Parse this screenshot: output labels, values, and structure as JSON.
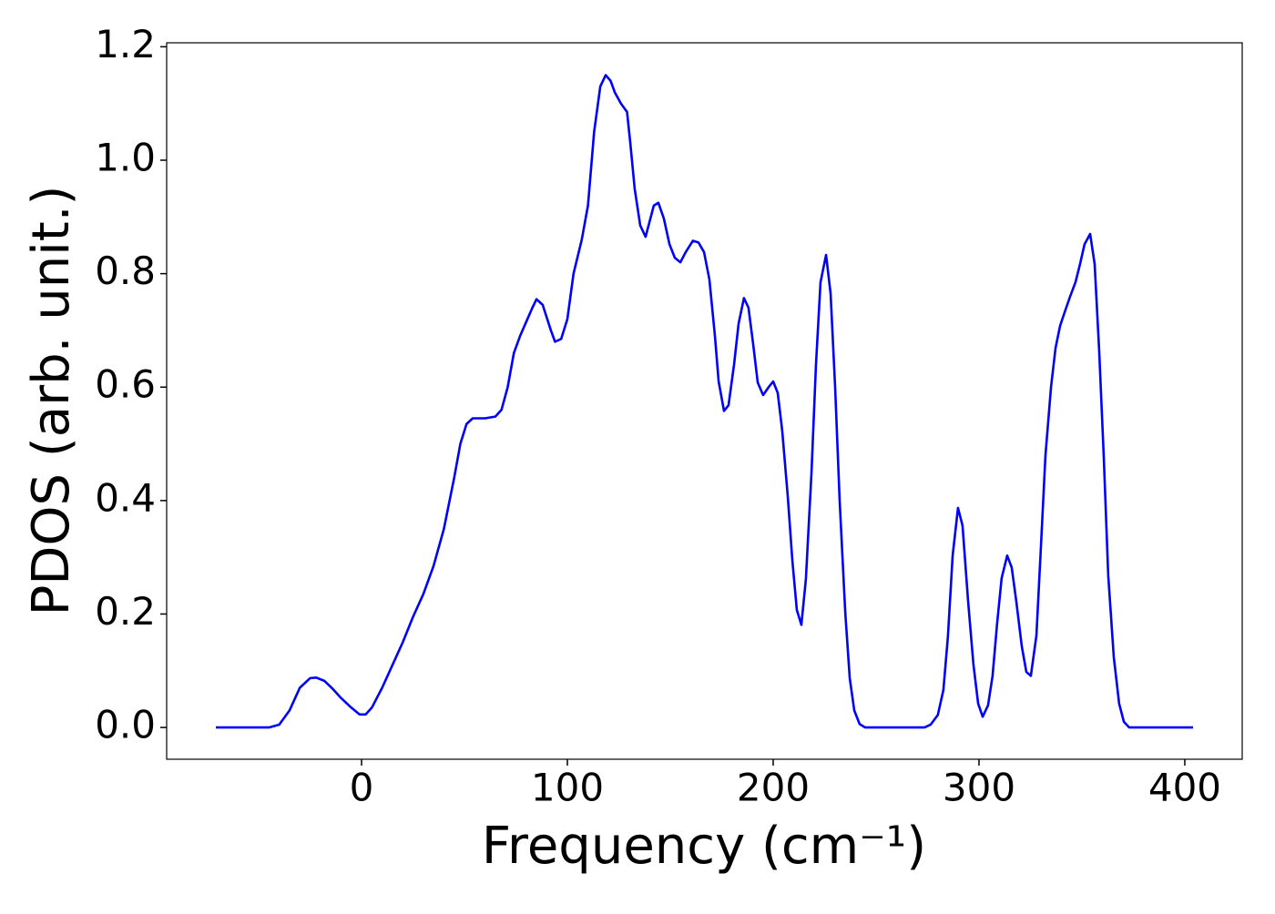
{
  "chart_data": {
    "type": "line",
    "xlabel": "Frequency (cm⁻¹)",
    "ylabel": "PDOS (arb. unit.)",
    "xlim": [
      -94.7,
      427.9
    ],
    "xticks": [
      0,
      100,
      200,
      300,
      400
    ],
    "ylim": [
      -0.056,
      1.207
    ],
    "yticks": [
      {
        "value": 0,
        "label": "0.0"
      },
      0.2,
      0.4,
      0.6,
      0.8,
      {
        "value": 1,
        "label": "1.0"
      },
      1.2
    ],
    "series": [
      {
        "color": "#0000ff",
        "x": [
          -70.8,
          -45,
          -40,
          -35,
          -30,
          -25,
          -22,
          -18,
          -14,
          -10,
          -5,
          -1,
          2,
          5,
          10,
          15,
          20,
          25,
          30,
          35,
          40,
          45,
          48,
          51,
          54,
          60,
          65,
          68,
          71,
          74,
          77,
          80,
          83,
          85,
          88,
          92,
          94,
          97,
          100,
          103,
          107,
          110,
          113,
          116,
          118.6,
          121,
          123,
          126,
          129,
          130.5,
          132.7,
          135.4,
          138,
          142,
          144.2,
          146.9,
          149.6,
          152.2,
          154.9,
          157.5,
          161,
          163.7,
          166.4,
          169,
          171.7,
          173.5,
          176.1,
          178.3,
          181,
          183.2,
          185.8,
          188,
          190.3,
          192.5,
          195.1,
          197.8,
          200,
          202.2,
          204.4,
          207.1,
          209.3,
          211.5,
          213.7,
          215.9,
          218.6,
          220.8,
          223,
          225.7,
          227.9,
          230.1,
          232.3,
          235,
          237.2,
          239.4,
          242,
          244.7,
          273.5,
          276.5,
          280,
          282.7,
          284.9,
          287.2,
          289.8,
          292,
          294.7,
          297.3,
          299.6,
          301.8,
          304.4,
          306.6,
          308.8,
          311,
          313.7,
          315.9,
          318.1,
          320.8,
          323,
          325.2,
          327.9,
          330.1,
          332.3,
          335,
          337.2,
          339.4,
          342,
          344.2,
          346.9,
          349.1,
          351.3,
          354,
          356.2,
          358.4,
          360.6,
          362.8,
          365.5,
          368.1,
          370.4,
          373,
          404
        ],
        "values": [
          0,
          0,
          0.005,
          0.03,
          0.07,
          0.087,
          0.088,
          0.082,
          0.068,
          0.052,
          0.035,
          0.023,
          0.023,
          0.035,
          0.07,
          0.11,
          0.15,
          0.195,
          0.235,
          0.285,
          0.35,
          0.44,
          0.5,
          0.535,
          0.545,
          0.545,
          0.548,
          0.56,
          0.6,
          0.66,
          0.69,
          0.715,
          0.74,
          0.755,
          0.745,
          0.7,
          0.68,
          0.685,
          0.72,
          0.8,
          0.86,
          0.92,
          1.05,
          1.13,
          1.15,
          1.14,
          1.12,
          1.1,
          1.085,
          1.033,
          0.95,
          0.885,
          0.865,
          0.92,
          0.925,
          0.897,
          0.852,
          0.828,
          0.82,
          0.838,
          0.858,
          0.855,
          0.838,
          0.79,
          0.69,
          0.61,
          0.558,
          0.568,
          0.64,
          0.712,
          0.757,
          0.74,
          0.675,
          0.608,
          0.586,
          0.6,
          0.61,
          0.59,
          0.523,
          0.407,
          0.295,
          0.207,
          0.181,
          0.262,
          0.448,
          0.64,
          0.785,
          0.833,
          0.765,
          0.6,
          0.4,
          0.204,
          0.087,
          0.03,
          0.006,
          0,
          0,
          0.005,
          0.022,
          0.066,
          0.16,
          0.303,
          0.387,
          0.356,
          0.223,
          0.111,
          0.042,
          0.019,
          0.039,
          0.091,
          0.183,
          0.263,
          0.303,
          0.282,
          0.223,
          0.143,
          0.098,
          0.091,
          0.162,
          0.319,
          0.48,
          0.6,
          0.669,
          0.708,
          0.736,
          0.759,
          0.785,
          0.817,
          0.852,
          0.87,
          0.817,
          0.664,
          0.48,
          0.268,
          0.124,
          0.042,
          0.01,
          0,
          0
        ]
      }
    ]
  }
}
